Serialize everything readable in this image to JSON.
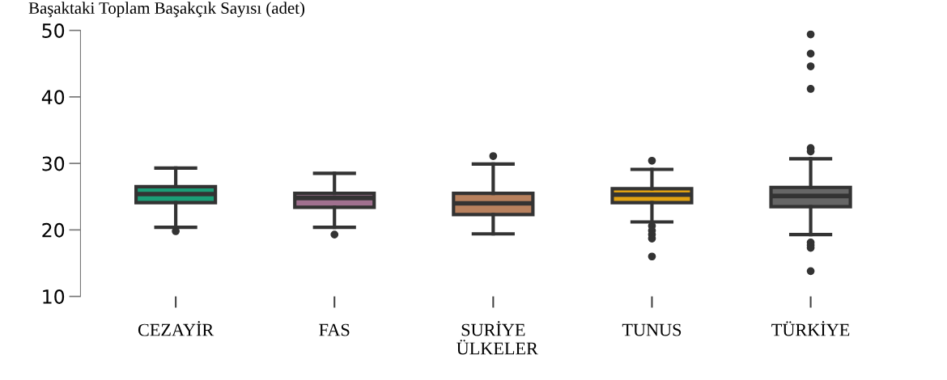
{
  "chart_data": {
    "type": "box",
    "ylabel": "Başaktaki Toplam Başakçık Sayısı (adet)",
    "xlabel": "ÜLKELER",
    "categories": [
      "CEZAYİR",
      "FAS",
      "SURİYE",
      "TUNUS",
      "TÜRKİYE"
    ],
    "colors": [
      "#1b9e77",
      "#a0708f",
      "#b8815e",
      "#e1a212",
      "#666666"
    ],
    "ylim": [
      10,
      50
    ],
    "yticks": [
      10,
      20,
      30,
      40,
      50
    ],
    "grid": false,
    "boxes": [
      {
        "low": 20.4,
        "q1": 24.1,
        "median": 25.4,
        "q3": 26.5,
        "high": 29.3,
        "outliers": [
          19.8
        ]
      },
      {
        "low": 20.4,
        "q1": 23.4,
        "median": 24.8,
        "q3": 25.5,
        "high": 28.5,
        "outliers": [
          19.3
        ]
      },
      {
        "low": 19.4,
        "q1": 22.3,
        "median": 24.0,
        "q3": 25.5,
        "high": 29.9,
        "outliers": [
          31.1
        ]
      },
      {
        "low": 21.2,
        "q1": 24.1,
        "median": 25.3,
        "q3": 26.2,
        "high": 29.1,
        "outliers": [
          30.4,
          20.6,
          19.9,
          19.3,
          18.7,
          16.0
        ]
      },
      {
        "low": 19.3,
        "q1": 23.5,
        "median": 25.1,
        "q3": 26.4,
        "high": 30.7,
        "outliers": [
          49.4,
          46.5,
          44.6,
          41.2,
          32.3,
          31.8,
          18.1,
          17.7,
          17.3,
          13.8
        ]
      }
    ]
  }
}
